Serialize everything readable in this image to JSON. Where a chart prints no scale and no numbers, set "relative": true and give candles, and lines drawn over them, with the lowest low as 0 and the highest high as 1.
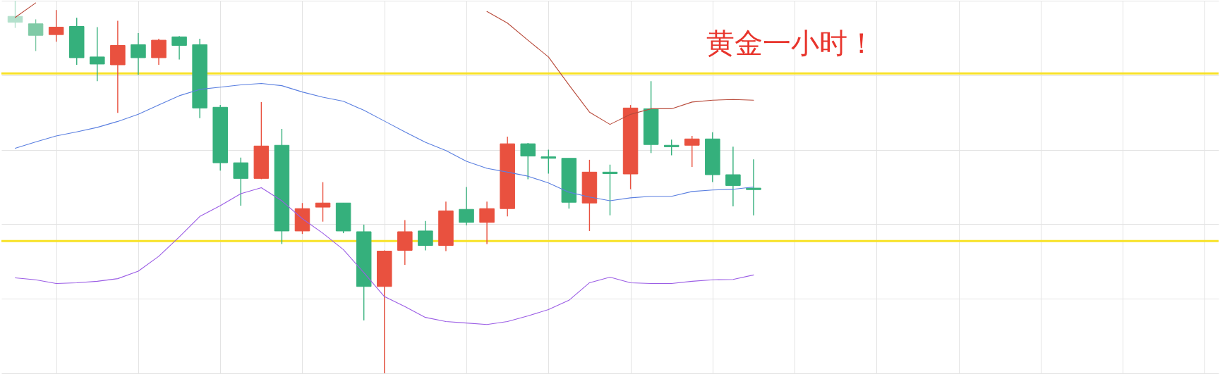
{
  "chart_data": {
    "type": "candlestick",
    "relative": true,
    "grid": true,
    "categories": [
      null,
      null,
      null,
      null,
      null,
      null,
      null,
      null,
      null,
      null,
      null,
      null,
      null,
      null,
      null,
      null,
      null,
      null,
      null,
      null,
      null,
      null,
      null,
      null,
      null,
      null,
      null,
      null,
      null,
      null,
      null,
      null,
      null,
      null,
      null,
      null,
      null,
      null,
      null,
      null,
      null,
      null,
      null,
      null,
      null,
      null,
      null,
      null,
      null,
      null,
      null,
      null,
      null,
      null,
      null,
      null,
      null,
      null,
      null
    ],
    "ohlc": [
      [
        0.958,
        1.0,
        0.927,
        0.942
      ],
      [
        0.938,
        0.95,
        0.865,
        0.907
      ],
      [
        0.909,
        0.975,
        0.89,
        0.929
      ],
      [
        0.931,
        0.954,
        0.828,
        0.847
      ],
      [
        0.849,
        0.929,
        0.784,
        0.83
      ],
      [
        0.828,
        0.946,
        0.699,
        0.88
      ],
      [
        0.882,
        0.913,
        0.801,
        0.847
      ],
      [
        0.847,
        0.898,
        0.828,
        0.894
      ],
      [
        0.903,
        0.905,
        0.842,
        0.88
      ],
      [
        0.882,
        0.898,
        0.685,
        0.712
      ],
      [
        0.714,
        0.72,
        0.544,
        0.565
      ],
      [
        0.565,
        0.579,
        0.45,
        0.523
      ],
      [
        0.523,
        0.728,
        0.521,
        0.61
      ],
      [
        0.612,
        0.656,
        0.347,
        0.382
      ],
      [
        0.382,
        0.457,
        0.374,
        0.442
      ],
      [
        0.446,
        0.513,
        0.407,
        0.457
      ],
      [
        0.457,
        0.457,
        0.376,
        0.382
      ],
      [
        0.38,
        0.399,
        0.142,
        0.233
      ],
      [
        0.233,
        0.33,
        0.0,
        0.328
      ],
      [
        0.33,
        0.411,
        0.291,
        0.38
      ],
      [
        0.382,
        0.409,
        0.33,
        0.343
      ],
      [
        0.343,
        0.461,
        0.328,
        0.436
      ],
      [
        0.44,
        0.5,
        0.397,
        0.405
      ],
      [
        0.405,
        0.461,
        0.347,
        0.442
      ],
      [
        0.442,
        0.635,
        0.421,
        0.616
      ],
      [
        0.616,
        0.618,
        0.521,
        0.583
      ],
      [
        0.581,
        0.6,
        0.536,
        0.577
      ],
      [
        0.577,
        0.577,
        0.442,
        0.459
      ],
      [
        0.457,
        0.573,
        0.382,
        0.54
      ],
      [
        0.54,
        0.56,
        0.424,
        0.536
      ],
      [
        0.535,
        0.72,
        0.494,
        0.712
      ],
      [
        0.71,
        0.784,
        0.591,
        0.614
      ],
      [
        0.612,
        0.627,
        0.585,
        0.608
      ],
      [
        0.612,
        0.637,
        0.554,
        0.629
      ],
      [
        0.629,
        0.647,
        0.513,
        0.533
      ],
      [
        0.533,
        0.608,
        0.448,
        0.504
      ],
      [
        0.497,
        0.574,
        0.424,
        0.493
      ],
      null,
      null,
      null,
      null,
      null,
      null,
      null,
      null,
      null,
      null,
      null,
      null,
      null,
      null,
      null,
      null,
      null,
      null,
      null,
      null,
      null,
      null
    ],
    "colors": [
      "#b3e0cc",
      "#7fcaa6",
      "#e9513f",
      "#35b07c",
      "#35b07c",
      "#e9513f",
      "#35b07c",
      "#e9513f",
      "#35b07c",
      "#35b07c",
      "#35b07c",
      "#35b07c",
      "#e9513f",
      "#35b07c",
      "#e9513f",
      "#e9513f",
      "#35b07c",
      "#35b07c",
      "#e9513f",
      "#e9513f",
      "#35b07c",
      "#e9513f",
      "#35b07c",
      "#e9513f",
      "#e9513f",
      "#35b07c",
      "#35b07c",
      "#35b07c",
      "#e9513f",
      "#35b07c",
      "#e9513f",
      "#35b07c",
      "#35b07c",
      "#e9513f",
      "#35b07c",
      "#35b07c",
      "#35b07c",
      null,
      null,
      null,
      null,
      null,
      null,
      null,
      null,
      null,
      null,
      null,
      null,
      null,
      null,
      null,
      null,
      null,
      null,
      null,
      null,
      null,
      null
    ],
    "series": [
      {
        "type": "line",
        "color": "#b84a3a",
        "values": [
          0.955,
          0.994,
          null,
          null,
          null,
          null,
          null,
          null,
          null,
          null,
          null,
          null,
          null,
          null,
          null,
          null,
          null,
          null,
          null,
          null,
          null,
          null,
          null,
          0.971,
          0.94,
          0.894,
          0.849,
          0.774,
          0.701,
          0.668,
          0.695,
          0.71,
          0.71,
          0.728,
          0.733,
          0.735,
          0.733,
          null,
          null,
          null,
          null,
          null,
          null,
          null,
          null,
          null,
          null,
          null,
          null,
          null,
          null,
          null,
          null,
          null,
          null,
          null,
          null,
          null,
          null
        ]
      },
      {
        "type": "line",
        "color": "#5a7fe0",
        "values": [
          0.604,
          0.621,
          0.637,
          0.648,
          0.66,
          0.676,
          0.695,
          0.72,
          0.745,
          0.762,
          0.768,
          0.774,
          0.778,
          0.772,
          0.755,
          0.741,
          0.73,
          0.706,
          0.677,
          0.648,
          0.62,
          0.598,
          0.569,
          0.55,
          0.54,
          0.529,
          0.511,
          0.486,
          0.473,
          0.463,
          0.471,
          0.475,
          0.475,
          0.488,
          0.492,
          0.494,
          0.5,
          null,
          null,
          null,
          null,
          null,
          null,
          null,
          null,
          null,
          null,
          null,
          null,
          null,
          null,
          null,
          null,
          null,
          null,
          null,
          null,
          null,
          null
        ]
      },
      {
        "type": "line",
        "color": "#9b5de5",
        "values": [
          0.256,
          0.251,
          0.241,
          0.243,
          0.247,
          0.254,
          0.274,
          0.314,
          0.366,
          0.421,
          0.45,
          0.482,
          0.498,
          0.463,
          0.415,
          0.376,
          0.332,
          0.27,
          0.206,
          0.179,
          0.15,
          0.139,
          0.135,
          0.131,
          0.139,
          0.154,
          0.171,
          0.196,
          0.243,
          0.258,
          0.243,
          0.241,
          0.241,
          0.247,
          0.251,
          0.252,
          0.264,
          null,
          null,
          null,
          null,
          null,
          null,
          null,
          null,
          null,
          null,
          null,
          null,
          null,
          null,
          null,
          null,
          null,
          null,
          null,
          null,
          null,
          null
        ]
      }
    ],
    "ref_lines": [
      {
        "axis": "y",
        "value": 0.805,
        "color": "#f8e227"
      },
      {
        "axis": "y",
        "value": 0.355,
        "color": "#f8e227"
      }
    ],
    "annotations": [
      "黄金一小时！"
    ]
  }
}
